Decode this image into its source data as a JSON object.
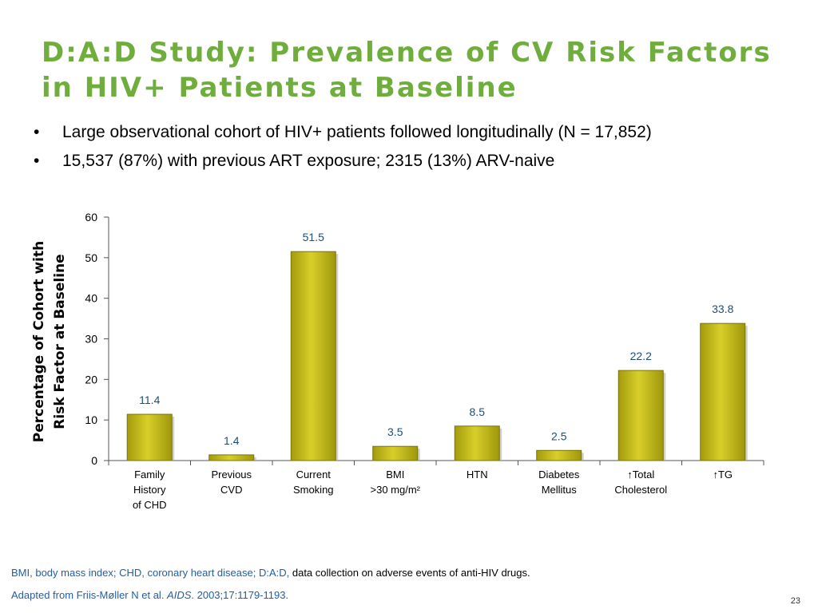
{
  "slide": {
    "title_lines": [
      "D:A:D Study: Prevalence of CV Risk Factors",
      "in HIV+ Patients at Baseline"
    ],
    "bullets": [
      "Large observational cohort of HIV+ patients followed longitudinally (N = 17,852)",
      "15,537 (87%) with previous ART exposure; 2315 (13%) ARV-naive"
    ],
    "footnote_colored": "BMI, body mass index; CHD, coronary heart disease; D:A:D, ",
    "footnote_plain": "data collection on adverse events of anti-HIV drugs.",
    "source_pre": "Adapted from Friis-Møller N et al. ",
    "source_journal": "AIDS",
    "source_post": ". 2003;17:1179-1193.",
    "page_number": "23"
  },
  "chart_data": {
    "type": "bar",
    "categories": [
      [
        "Family",
        "History",
        "of CHD"
      ],
      [
        "Previous",
        "CVD"
      ],
      [
        "Current",
        "Smoking"
      ],
      [
        "BMI",
        ">30 mg/m²"
      ],
      [
        "HTN"
      ],
      [
        "Diabetes",
        "Mellitus"
      ],
      [
        "↑Total",
        "Cholesterol"
      ],
      [
        "↑TG"
      ]
    ],
    "values": [
      11.4,
      1.4,
      51.5,
      3.5,
      8.5,
      2.5,
      22.2,
      33.8
    ],
    "value_labels": [
      "11.4",
      "1.4",
      "51.5",
      "3.5",
      "8.5",
      "2.5",
      "22.2",
      "33.8"
    ],
    "ylabel_lines": [
      "Percentage of Cohort with",
      "Risk Factor at Baseline"
    ],
    "ylim": [
      0,
      60
    ],
    "yticks": [
      0,
      10,
      20,
      30,
      40,
      50,
      60
    ],
    "grid": false,
    "colors": {
      "bar": "#c8bf16",
      "bar_edge": "#7a740a",
      "value_label": "#1f4e79",
      "axis": "#555555"
    }
  }
}
